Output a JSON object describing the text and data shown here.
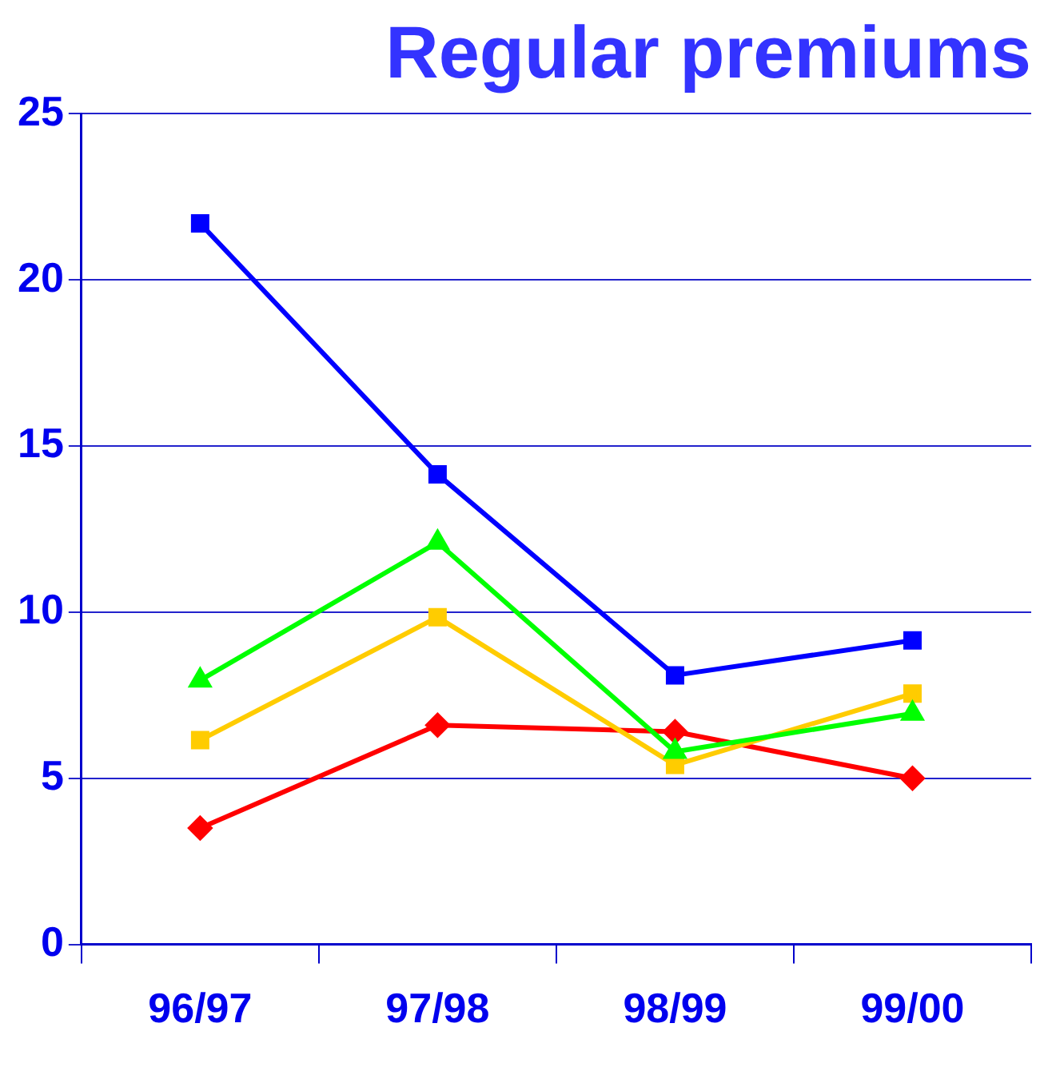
{
  "chart_data": {
    "type": "line",
    "title": "Regular premiums",
    "categories": [
      "96/97",
      "97/98",
      "98/99",
      "99/00"
    ],
    "series": [
      {
        "color": "#0000ff",
        "marker": "square",
        "values": [
          21.7,
          14.15,
          8.1,
          9.15
        ]
      },
      {
        "color": "#00ff00",
        "marker": "triangle",
        "values": [
          7.95,
          12.1,
          5.8,
          6.95
        ]
      },
      {
        "color": "#ffcc00",
        "marker": "square",
        "values": [
          6.15,
          9.85,
          5.4,
          7.55
        ]
      },
      {
        "color": "#ff0000",
        "marker": "diamond",
        "values": [
          3.5,
          6.6,
          6.4,
          5.0
        ]
      }
    ],
    "ylim": [
      0,
      25
    ],
    "yticks": [
      0,
      5,
      10,
      15,
      20,
      25
    ],
    "grid": "y",
    "legend": false
  }
}
